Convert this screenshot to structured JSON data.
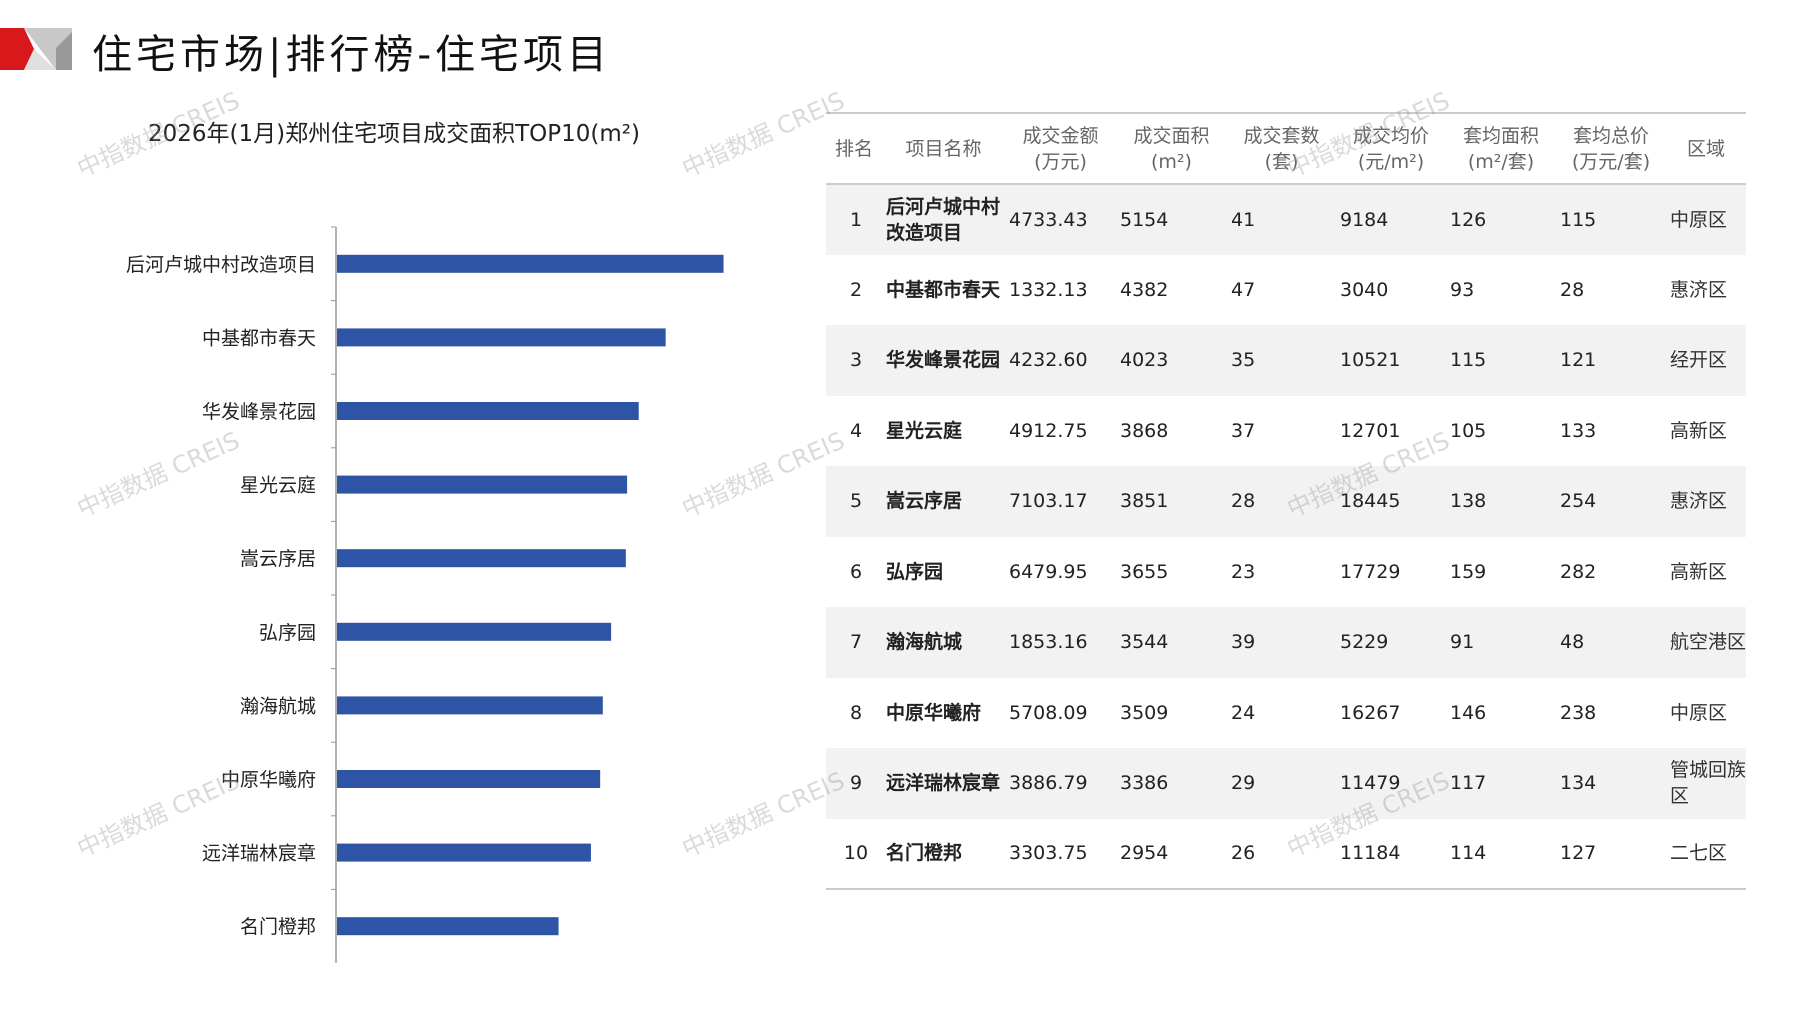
{
  "title": "住宅市场|排行榜-住宅项目",
  "watermark": "中指数据 CREIS",
  "colors": {
    "bar": "#2e55a5",
    "logo_red": "#d7191c",
    "logo_grey": "#aaaaaa"
  },
  "chart_data": {
    "type": "bar",
    "orientation": "horizontal",
    "title": "2026年(1月)郑州住宅项目成交面积TOP10(m²)",
    "categories": [
      "后河卢城中村改造项目",
      "中基都市春天",
      "华发峰景花园",
      "星光云庭",
      "嵩云序居",
      "弘序园",
      "瀚海航城",
      "中原华曦府",
      "远洋瑞林宸章",
      "名门橙邦"
    ],
    "values": [
      5154,
      4382,
      4023,
      3868,
      3851,
      3655,
      3544,
      3509,
      3386,
      2954
    ],
    "xlim": [
      0,
      5600
    ],
    "grid": false
  },
  "table": {
    "headers": [
      [
        "排名",
        ""
      ],
      [
        "项目名称",
        ""
      ],
      [
        "成交金额",
        "(万元)"
      ],
      [
        "成交面积",
        "(m²)"
      ],
      [
        "成交套数",
        "(套)"
      ],
      [
        "成交均价",
        "(元/m²)"
      ],
      [
        "套均面积",
        "(m²/套)"
      ],
      [
        "套均总价",
        "(万元/套)"
      ],
      [
        "区域",
        ""
      ]
    ],
    "rows": [
      [
        "1",
        "后河卢城中村改造项目",
        "4733.43",
        "5154",
        "41",
        "9184",
        "126",
        "115",
        "中原区"
      ],
      [
        "2",
        "中基都市春天",
        "1332.13",
        "4382",
        "47",
        "3040",
        "93",
        "28",
        "惠济区"
      ],
      [
        "3",
        "华发峰景花园",
        "4232.60",
        "4023",
        "35",
        "10521",
        "115",
        "121",
        "经开区"
      ],
      [
        "4",
        "星光云庭",
        "4912.75",
        "3868",
        "37",
        "12701",
        "105",
        "133",
        "高新区"
      ],
      [
        "5",
        "嵩云序居",
        "7103.17",
        "3851",
        "28",
        "18445",
        "138",
        "254",
        "惠济区"
      ],
      [
        "6",
        "弘序园",
        "6479.95",
        "3655",
        "23",
        "17729",
        "159",
        "282",
        "高新区"
      ],
      [
        "7",
        "瀚海航城",
        "1853.16",
        "3544",
        "39",
        "5229",
        "91",
        "48",
        "航空港区"
      ],
      [
        "8",
        "中原华曦府",
        "5708.09",
        "3509",
        "24",
        "16267",
        "146",
        "238",
        "中原区"
      ],
      [
        "9",
        "远洋瑞林宸章",
        "3886.79",
        "3386",
        "29",
        "11479",
        "117",
        "134",
        "管城回族区"
      ],
      [
        "10",
        "名门橙邦",
        "3303.75",
        "2954",
        "26",
        "11184",
        "114",
        "127",
        "二七区"
      ]
    ]
  }
}
